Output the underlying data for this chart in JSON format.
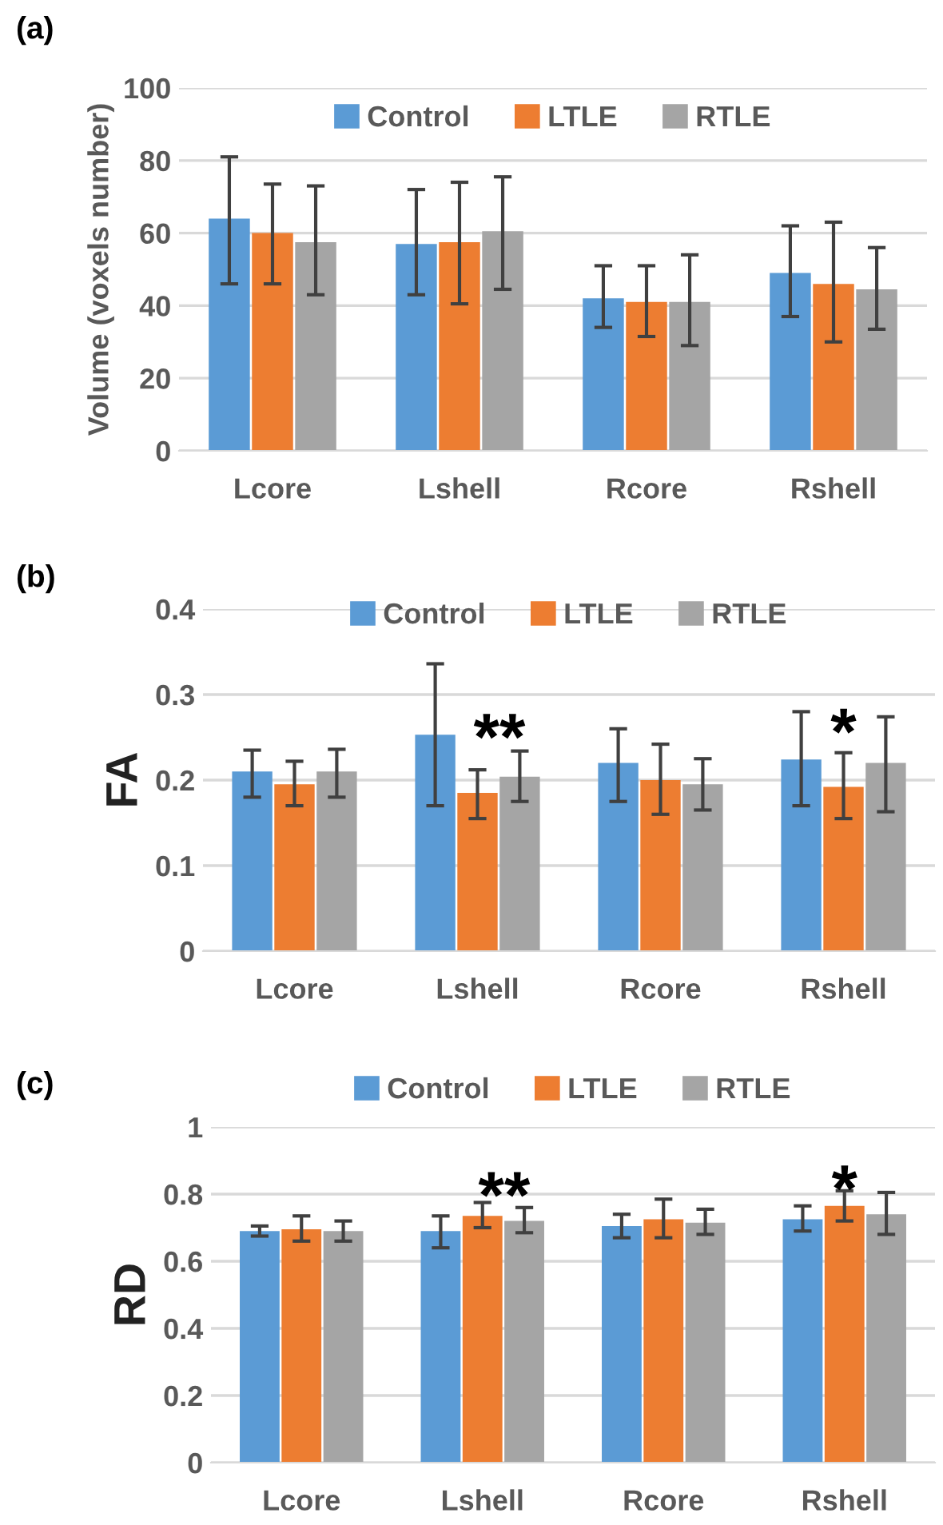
{
  "chart_data": [
    {
      "type": "bar",
      "title": "(a)",
      "ylabel": "Volume (voxels number)",
      "categories": [
        "Lcore",
        "Lshell",
        "Rcore",
        "Rshell"
      ],
      "ylim": [
        0,
        100
      ],
      "yticks": [
        0,
        20,
        40,
        60,
        80,
        100
      ],
      "grid": "y",
      "legend": "top",
      "series": [
        {
          "name": "Control",
          "color": "#5b9bd5",
          "values": [
            64,
            57,
            42,
            49
          ],
          "errors": [
            [
              46,
              81
            ],
            [
              43,
              72
            ],
            [
              34,
              51
            ],
            [
              37,
              62
            ]
          ]
        },
        {
          "name": "LTLE",
          "color": "#ed7d31",
          "values": [
            60,
            57.5,
            41,
            46
          ],
          "errors": [
            [
              46,
              73.5
            ],
            [
              40.5,
              74
            ],
            [
              31.5,
              51
            ],
            [
              30,
              63
            ]
          ]
        },
        {
          "name": "RTLE",
          "color": "#a5a5a5",
          "values": [
            57.5,
            60.5,
            41,
            44.5
          ],
          "errors": [
            [
              43,
              73
            ],
            [
              44.5,
              75.5
            ],
            [
              29,
              54
            ],
            [
              33.5,
              56
            ]
          ]
        }
      ]
    },
    {
      "type": "bar",
      "title": "(b)",
      "ylabel": "FA",
      "categories": [
        "Lcore",
        "Lshell",
        "Rcore",
        "Rshell"
      ],
      "ylim": [
        0,
        0.4
      ],
      "yticks": [
        0,
        0.1,
        0.2,
        0.3,
        0.4
      ],
      "grid": "y",
      "legend": "top",
      "series": [
        {
          "name": "Control",
          "color": "#5b9bd5",
          "values": [
            0.21,
            0.253,
            0.22,
            0.224
          ],
          "errors": [
            [
              0.18,
              0.235
            ],
            [
              0.17,
              0.336
            ],
            [
              0.175,
              0.26
            ],
            [
              0.17,
              0.28
            ]
          ]
        },
        {
          "name": "LTLE",
          "color": "#ed7d31",
          "values": [
            0.195,
            0.185,
            0.2,
            0.192
          ],
          "errors": [
            [
              0.17,
              0.222
            ],
            [
              0.155,
              0.212
            ],
            [
              0.16,
              0.242
            ],
            [
              0.155,
              0.232
            ]
          ]
        },
        {
          "name": "RTLE",
          "color": "#a5a5a5",
          "values": [
            0.21,
            0.204,
            0.195,
            0.22
          ],
          "errors": [
            [
              0.18,
              0.236
            ],
            [
              0.175,
              0.234
            ],
            [
              0.165,
              0.225
            ],
            [
              0.163,
              0.274
            ]
          ]
        }
      ],
      "annotations": [
        "**",
        "*"
      ]
    },
    {
      "type": "bar",
      "title": "(c)",
      "ylabel": "RD",
      "categories": [
        "Lcore",
        "Lshell",
        "Rcore",
        "Rshell"
      ],
      "ylim": [
        0,
        1
      ],
      "yticks": [
        0,
        0.2,
        0.4,
        0.6,
        0.8,
        1
      ],
      "grid": "y",
      "legend": "top",
      "series": [
        {
          "name": "Control",
          "color": "#5b9bd5",
          "values": [
            0.69,
            0.69,
            0.705,
            0.725
          ],
          "errors": [
            [
              0.675,
              0.705
            ],
            [
              0.64,
              0.735
            ],
            [
              0.67,
              0.74
            ],
            [
              0.69,
              0.765
            ]
          ]
        },
        {
          "name": "LTLE",
          "color": "#ed7d31",
          "values": [
            0.695,
            0.735,
            0.725,
            0.765
          ],
          "errors": [
            [
              0.66,
              0.735
            ],
            [
              0.7,
              0.775
            ],
            [
              0.67,
              0.785
            ],
            [
              0.72,
              0.81
            ]
          ]
        },
        {
          "name": "RTLE",
          "color": "#a5a5a5",
          "values": [
            0.69,
            0.72,
            0.715,
            0.74
          ],
          "errors": [
            [
              0.66,
              0.72
            ],
            [
              0.685,
              0.76
            ],
            [
              0.68,
              0.755
            ],
            [
              0.68,
              0.805
            ]
          ]
        }
      ],
      "annotations": [
        "**",
        "*"
      ]
    }
  ]
}
